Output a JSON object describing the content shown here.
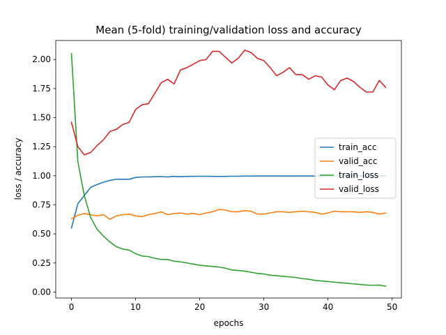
{
  "chart_data": {
    "type": "line",
    "title": "Mean (5-fold) training/validation loss and accuracy",
    "xlabel": "epochs",
    "ylabel": "loss / accuracy",
    "xlim": [
      -2.45,
      51.45
    ],
    "ylim": [
      -0.0515,
      2.1635
    ],
    "xticks": [
      0,
      10,
      20,
      30,
      40,
      50
    ],
    "xtick_labels": [
      "0",
      "10",
      "20",
      "30",
      "40",
      "50"
    ],
    "yticks": [
      0.0,
      0.25,
      0.5,
      0.75,
      1.0,
      1.25,
      1.5,
      1.75,
      2.0
    ],
    "ytick_labels": [
      "0.00",
      "0.25",
      "0.50",
      "0.75",
      "1.00",
      "1.25",
      "1.50",
      "1.75",
      "2.00"
    ],
    "grid": false,
    "legend_position": "center-right",
    "x": [
      0,
      1,
      2,
      3,
      4,
      5,
      6,
      7,
      8,
      9,
      10,
      11,
      12,
      13,
      14,
      15,
      16,
      17,
      18,
      19,
      20,
      21,
      22,
      23,
      24,
      25,
      26,
      27,
      28,
      29,
      30,
      31,
      32,
      33,
      34,
      35,
      36,
      37,
      38,
      39,
      40,
      41,
      42,
      43,
      44,
      45,
      46,
      47,
      48,
      49
    ],
    "series": [
      {
        "name": "train_acc",
        "color": "#1f77b4",
        "values": [
          0.55,
          0.76,
          0.83,
          0.9,
          0.925,
          0.945,
          0.96,
          0.97,
          0.97,
          0.97,
          0.985,
          0.99,
          0.99,
          0.992,
          0.993,
          0.99,
          0.995,
          0.992,
          0.995,
          0.995,
          0.996,
          0.996,
          0.995,
          0.994,
          0.995,
          0.996,
          0.996,
          0.997,
          0.997,
          0.998,
          0.998,
          0.998,
          0.998,
          0.998,
          0.997,
          0.998,
          0.998,
          0.998,
          0.998,
          0.998,
          0.999,
          0.999,
          0.999,
          0.999,
          0.999,
          0.999,
          0.999,
          0.999,
          0.999,
          0.999
        ]
      },
      {
        "name": "valid_acc",
        "color": "#ff7f0e",
        "values": [
          0.63,
          0.66,
          0.675,
          0.665,
          0.655,
          0.665,
          0.625,
          0.655,
          0.665,
          0.67,
          0.655,
          0.648,
          0.665,
          0.675,
          0.69,
          0.665,
          0.675,
          0.68,
          0.67,
          0.675,
          0.665,
          0.68,
          0.69,
          0.71,
          0.705,
          0.69,
          0.69,
          0.7,
          0.695,
          0.67,
          0.67,
          0.68,
          0.69,
          0.69,
          0.685,
          0.69,
          0.695,
          0.69,
          0.685,
          0.67,
          0.68,
          0.695,
          0.69,
          0.69,
          0.69,
          0.685,
          0.69,
          0.685,
          0.67,
          0.68
        ]
      },
      {
        "name": "train_loss",
        "color": "#2ca02c",
        "values": [
          2.05,
          1.12,
          0.83,
          0.64,
          0.54,
          0.48,
          0.43,
          0.39,
          0.37,
          0.36,
          0.33,
          0.31,
          0.305,
          0.29,
          0.28,
          0.28,
          0.265,
          0.26,
          0.25,
          0.24,
          0.23,
          0.225,
          0.22,
          0.215,
          0.205,
          0.19,
          0.185,
          0.18,
          0.17,
          0.16,
          0.155,
          0.145,
          0.14,
          0.135,
          0.13,
          0.125,
          0.115,
          0.11,
          0.1,
          0.095,
          0.09,
          0.085,
          0.08,
          0.075,
          0.07,
          0.065,
          0.06,
          0.058,
          0.06,
          0.05
        ]
      },
      {
        "name": "valid_loss",
        "color": "#d62728",
        "values": [
          1.46,
          1.25,
          1.18,
          1.2,
          1.26,
          1.31,
          1.38,
          1.4,
          1.44,
          1.46,
          1.57,
          1.61,
          1.62,
          1.71,
          1.8,
          1.83,
          1.79,
          1.91,
          1.93,
          1.96,
          1.99,
          2.0,
          2.07,
          2.07,
          2.02,
          1.97,
          2.01,
          2.08,
          2.06,
          2.01,
          1.99,
          1.93,
          1.86,
          1.89,
          1.93,
          1.87,
          1.87,
          1.83,
          1.86,
          1.85,
          1.78,
          1.74,
          1.82,
          1.84,
          1.81,
          1.76,
          1.72,
          1.72,
          1.82,
          1.76
        ]
      }
    ]
  }
}
